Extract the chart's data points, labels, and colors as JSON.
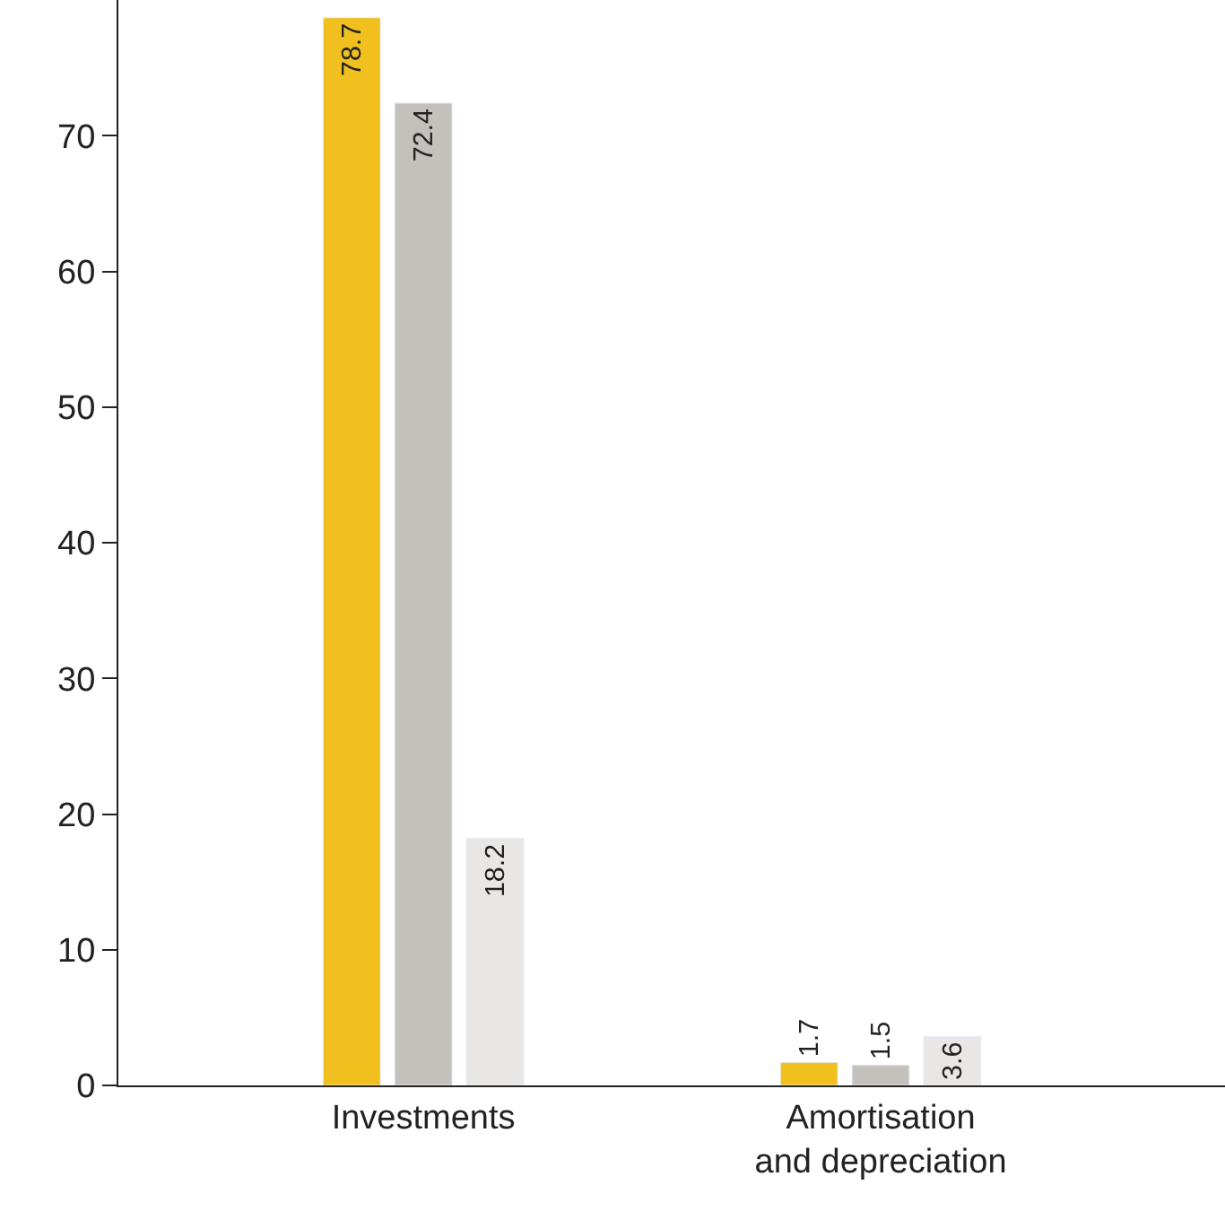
{
  "chart_data": {
    "type": "bar",
    "categories": [
      "Investments",
      "Amortisation\nand depreciation"
    ],
    "series": [
      {
        "color": "#f2c01e",
        "values": [
          78.7,
          1.7
        ]
      },
      {
        "color": "#c4c0bb",
        "values": [
          72.4,
          1.5
        ]
      },
      {
        "color": "#e9e7e5",
        "values": [
          18.2,
          3.6
        ]
      }
    ],
    "ylim": [
      0,
      80
    ],
    "yticks": [
      0,
      10,
      20,
      30,
      40,
      50,
      60,
      70
    ],
    "data_labels": true
  }
}
